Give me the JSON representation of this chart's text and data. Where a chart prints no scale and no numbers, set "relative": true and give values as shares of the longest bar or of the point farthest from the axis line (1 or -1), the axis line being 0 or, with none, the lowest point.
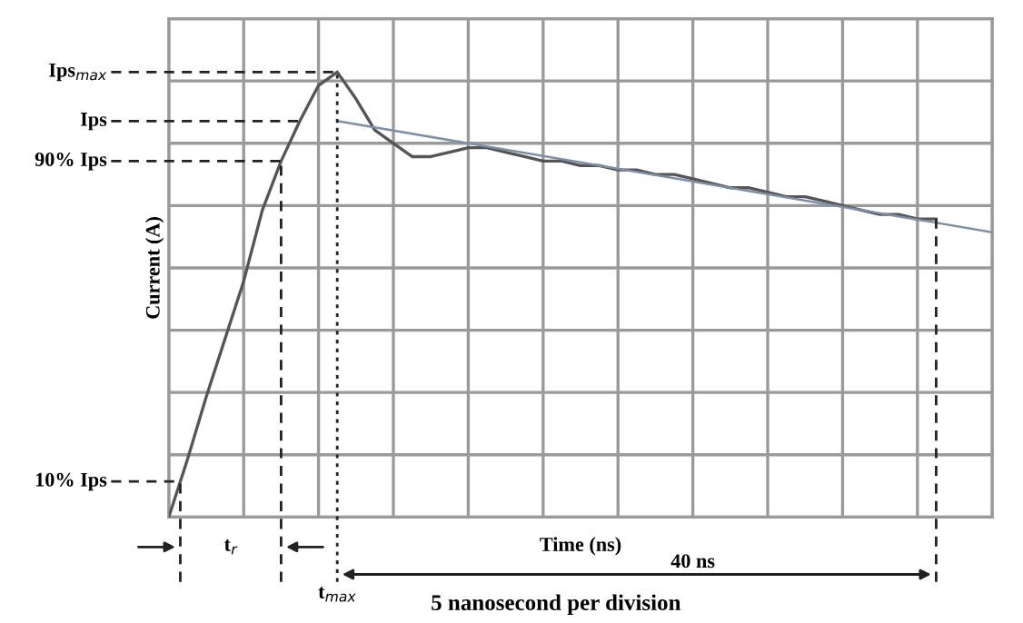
{
  "chart_data": {
    "type": "line",
    "relative": true,
    "ylabel": "Current (A)",
    "xlabel": "Time (ns)",
    "categories": [
      null,
      null,
      null,
      null,
      null,
      null,
      null,
      null,
      null,
      null,
      null,
      null,
      null,
      null,
      null,
      null,
      null,
      null,
      null,
      null,
      null,
      null,
      null,
      null,
      null,
      null,
      null,
      null,
      null,
      null,
      null,
      null,
      null,
      null,
      null,
      null,
      null,
      null,
      null,
      null,
      null,
      null,
      null,
      null,
      null
    ],
    "grid": true,
    "series": [
      {
        "color": "#555555",
        "values": [
          0,
          0.13,
          0.27,
          0.4,
          0.53,
          0.69,
          0.8,
          0.89,
          0.97,
          1.0,
          0.94,
          0.87,
          0.84,
          0.81,
          0.81,
          0.82,
          0.83,
          0.83,
          0.82,
          0.81,
          0.8,
          0.8,
          0.79,
          0.79,
          0.78,
          0.78,
          0.77,
          0.77,
          0.76,
          0.75,
          0.74,
          0.74,
          0.73,
          0.72,
          0.72,
          0.71,
          0.7,
          0.69,
          0.68,
          0.68,
          0.67,
          0.67,
          null,
          null,
          null
        ]
      },
      {
        "color": "#7d8fa8",
        "values": [
          null,
          null,
          null,
          null,
          null,
          null,
          null,
          null,
          null,
          0.89,
          null,
          null,
          null,
          null,
          null,
          null,
          null,
          null,
          null,
          null,
          null,
          null,
          null,
          null,
          null,
          null,
          null,
          null,
          null,
          null,
          null,
          null,
          null,
          null,
          null,
          null,
          null,
          null,
          null,
          null,
          null,
          null,
          null,
          null,
          0.64
        ]
      }
    ],
    "ref_lines": [
      {
        "axis": "y",
        "value": 1.0,
        "label": "Ips$_{max}$",
        "line_style": "dashed",
        "color": "#222222"
      },
      {
        "axis": "y",
        "value": 0.89,
        "label": "Ips",
        "line_style": "dashed",
        "color": "#222222"
      },
      {
        "axis": "y",
        "value": 0.8,
        "label": "90% Ips",
        "line_style": "dashed",
        "color": "#222222"
      },
      {
        "axis": "y",
        "value": 0.08,
        "label": "10% Ips",
        "line_style": "dashed",
        "color": "#222222"
      }
    ],
    "annotations": [
      "t$_{r}$",
      "t$_{max}$",
      "40 ns",
      "5 nanosecond per division"
    ]
  }
}
